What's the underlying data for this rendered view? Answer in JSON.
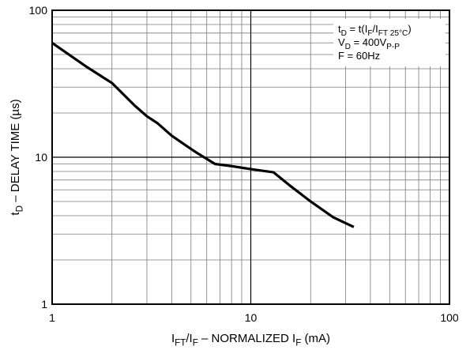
{
  "chart_data": {
    "type": "line",
    "x_scale": "log",
    "y_scale": "log",
    "xlim": [
      1,
      100
    ],
    "ylim": [
      1,
      100
    ],
    "grid": true,
    "x_tick_labels": [
      "1",
      "10",
      "100"
    ],
    "y_tick_labels": [
      "1",
      "10",
      "100"
    ],
    "xlabel": {
      "parts": [
        {
          "text": "I",
          "sub": false
        },
        {
          "text": "FT",
          "sub": true
        },
        {
          "text": "/I",
          "sub": false
        },
        {
          "text": "F",
          "sub": true
        },
        {
          "text": " – NORMALIZED I",
          "sub": false
        },
        {
          "text": "F",
          "sub": true
        },
        {
          "text": " (mA)",
          "sub": false
        }
      ]
    },
    "ylabel": {
      "parts": [
        {
          "text": "t",
          "sub": false
        },
        {
          "text": "D",
          "sub": true
        },
        {
          "text": " – DELAY TIME (µs)",
          "sub": false
        }
      ]
    },
    "annotation_lines": [
      {
        "parts": [
          {
            "text": "t",
            "sub": false
          },
          {
            "text": "D",
            "sub": true
          },
          {
            "text": " = t(I",
            "sub": false
          },
          {
            "text": "F",
            "sub": true
          },
          {
            "text": "/I",
            "sub": false
          },
          {
            "text": "FT 25°C",
            "sub": true
          },
          {
            "text": ")",
            "sub": false
          }
        ]
      },
      {
        "parts": [
          {
            "text": "V",
            "sub": false
          },
          {
            "text": "D",
            "sub": true
          },
          {
            "text": " = 400V",
            "sub": false
          },
          {
            "text": "P-P",
            "sub": true
          }
        ]
      },
      {
        "parts": [
          {
            "text": "F = 60Hz",
            "sub": false
          }
        ]
      }
    ],
    "annotation_position": "top-right",
    "series": [
      {
        "x": [
          1,
          1.5,
          2,
          2.6,
          3,
          3.4,
          4,
          4.6,
          5.3,
          6.6,
          8,
          10,
          13,
          16,
          20,
          26,
          33
        ],
        "y": [
          60,
          41,
          32,
          22.5,
          19,
          17,
          14,
          12.3,
          10.8,
          9.0,
          8.7,
          8.3,
          7.9,
          6.3,
          5.0,
          3.9,
          3.35
        ]
      }
    ]
  }
}
